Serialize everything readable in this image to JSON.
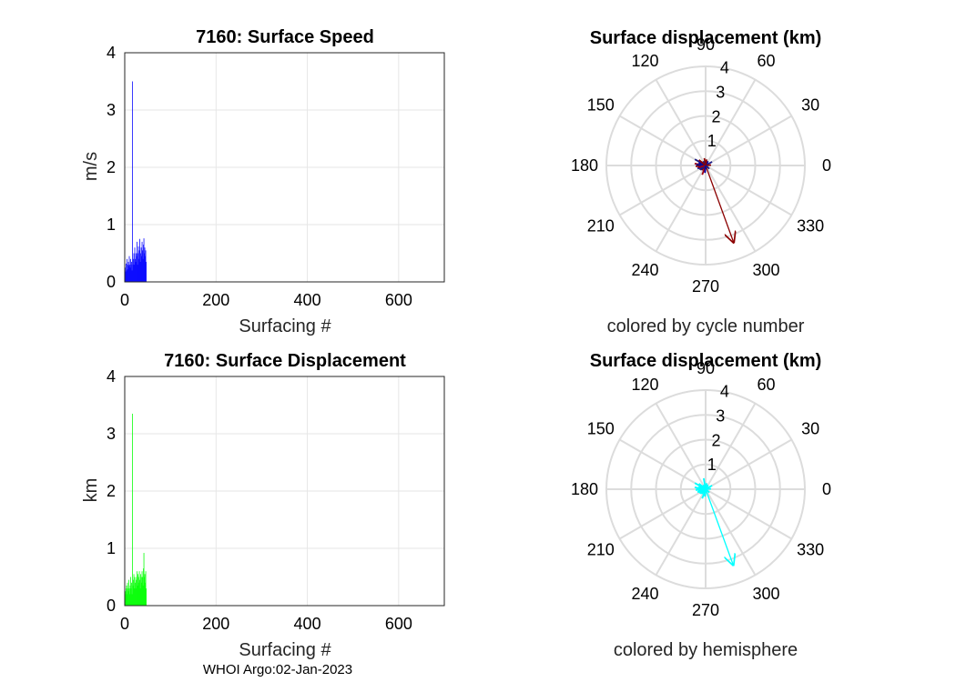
{
  "footer": "WHOI Argo:02-Jan-2023",
  "chart_data": [
    {
      "type": "bar",
      "title": "7160: Surface Speed",
      "xlabel": "Surfacing #",
      "ylabel": "m/s",
      "xlim": [
        0,
        700
      ],
      "ylim": [
        0,
        4
      ],
      "xticks": [
        "0",
        "200",
        "400",
        "600"
      ],
      "yticks": [
        "0",
        "1",
        "2",
        "3",
        "4"
      ],
      "color": "#0000ff",
      "n": 47,
      "values": [
        0.25,
        0.18,
        0.32,
        0.2,
        0.4,
        0.22,
        0.3,
        0.35,
        0.28,
        0.45,
        0.3,
        0.25,
        0.4,
        0.3,
        0.35,
        0.2,
        3.5,
        0.3,
        0.4,
        0.5,
        0.3,
        0.6,
        0.4,
        0.35,
        0.5,
        0.45,
        0.7,
        0.3,
        0.5,
        0.62,
        0.4,
        0.55,
        0.75,
        0.35,
        0.5,
        0.6,
        0.45,
        0.7,
        0.55,
        0.4,
        0.65,
        0.76,
        0.5,
        0.6,
        0.45,
        0.55,
        0.35
      ]
    },
    {
      "type": "polar",
      "title": "Surface displacement (km)",
      "xlabel": "colored by cycle number",
      "rlim": [
        0,
        4
      ],
      "rticks": [
        "1",
        "2",
        "3",
        "4"
      ],
      "angle_labels": [
        "0",
        "30",
        "60",
        "90",
        "120",
        "150",
        "180",
        "210",
        "240",
        "270",
        "300",
        "330"
      ],
      "vectors": [
        {
          "angle": 290,
          "r": 3.3,
          "color": "#8b0000"
        },
        {
          "angle": 150,
          "r": 0.5,
          "color": "#1a1a80"
        },
        {
          "angle": 185,
          "r": 0.4,
          "color": "#8b0000"
        },
        {
          "angle": 200,
          "r": 0.35,
          "color": "#0a0a8a"
        },
        {
          "angle": 170,
          "r": 0.45,
          "color": "#a00010"
        },
        {
          "angle": 210,
          "r": 0.3,
          "color": "#20208a"
        },
        {
          "angle": 160,
          "r": 0.3,
          "color": "#0000aa"
        },
        {
          "angle": 230,
          "r": 0.25,
          "color": "#8b0000"
        },
        {
          "angle": 100,
          "r": 0.3,
          "color": "#8b0000"
        },
        {
          "angle": 120,
          "r": 0.2,
          "color": "#1a1a80"
        },
        {
          "angle": 250,
          "r": 0.4,
          "color": "#a00010"
        },
        {
          "angle": 190,
          "r": 0.25,
          "color": "#0000aa"
        },
        {
          "angle": 140,
          "r": 0.35,
          "color": "#8b0000"
        },
        {
          "angle": 30,
          "r": 0.3,
          "color": "#20208a"
        },
        {
          "angle": 60,
          "r": 0.2,
          "color": "#0000aa"
        },
        {
          "angle": 5,
          "r": 0.22,
          "color": "#8b0000"
        },
        {
          "angle": 220,
          "r": 0.28,
          "color": "#1a1a80"
        },
        {
          "angle": 175,
          "r": 0.38,
          "color": "#0a0a8a"
        },
        {
          "angle": 195,
          "r": 0.3,
          "color": "#a00010"
        },
        {
          "angle": 265,
          "r": 0.3,
          "color": "#0000aa"
        },
        {
          "angle": 80,
          "r": 0.25,
          "color": "#8b0000"
        },
        {
          "angle": 320,
          "r": 0.2,
          "color": "#1a1a80"
        }
      ]
    },
    {
      "type": "bar",
      "title": "7160: Surface Displacement",
      "xlabel": "Surfacing #",
      "ylabel": "km",
      "xlim": [
        0,
        700
      ],
      "ylim": [
        0,
        4
      ],
      "xticks": [
        "0",
        "200",
        "400",
        "600"
      ],
      "yticks": [
        "0",
        "1",
        "2",
        "3",
        "4"
      ],
      "color": "#00ff00",
      "n": 47,
      "values": [
        0.2,
        0.25,
        0.3,
        0.35,
        0.2,
        0.4,
        0.3,
        0.25,
        0.45,
        0.3,
        0.2,
        0.35,
        0.5,
        0.3,
        0.4,
        0.2,
        3.35,
        0.35,
        0.45,
        0.55,
        0.3,
        0.5,
        0.4,
        0.3,
        0.45,
        0.5,
        0.6,
        0.35,
        0.55,
        0.4,
        0.5,
        0.6,
        0.45,
        0.3,
        0.55,
        0.5,
        0.4,
        0.6,
        0.5,
        0.35,
        0.65,
        0.92,
        0.5,
        0.55,
        0.4,
        0.6,
        0.3
      ]
    },
    {
      "type": "polar",
      "title": "Surface displacement (km)",
      "xlabel": "colored by hemisphere",
      "rlim": [
        0,
        4
      ],
      "rticks": [
        "1",
        "2",
        "3",
        "4"
      ],
      "angle_labels": [
        "0",
        "30",
        "60",
        "90",
        "120",
        "150",
        "180",
        "210",
        "240",
        "270",
        "300",
        "330"
      ],
      "vectors": [
        {
          "angle": 290,
          "r": 3.25,
          "color": "#00ffff"
        },
        {
          "angle": 150,
          "r": 0.5,
          "color": "#00ffff"
        },
        {
          "angle": 185,
          "r": 0.4,
          "color": "#00ffff"
        },
        {
          "angle": 200,
          "r": 0.35,
          "color": "#00ffff"
        },
        {
          "angle": 170,
          "r": 0.45,
          "color": "#00ffff"
        },
        {
          "angle": 210,
          "r": 0.3,
          "color": "#00ffff"
        },
        {
          "angle": 160,
          "r": 0.3,
          "color": "#00ffff"
        },
        {
          "angle": 230,
          "r": 0.25,
          "color": "#00ffff"
        },
        {
          "angle": 100,
          "r": 0.45,
          "color": "#00ffff"
        },
        {
          "angle": 120,
          "r": 0.2,
          "color": "#00ffff"
        },
        {
          "angle": 250,
          "r": 0.4,
          "color": "#00ffff"
        },
        {
          "angle": 190,
          "r": 0.25,
          "color": "#00ffff"
        },
        {
          "angle": 140,
          "r": 0.35,
          "color": "#00ffff"
        },
        {
          "angle": 30,
          "r": 0.3,
          "color": "#00ffff"
        },
        {
          "angle": 60,
          "r": 0.2,
          "color": "#00ffff"
        },
        {
          "angle": 5,
          "r": 0.22,
          "color": "#00ffff"
        },
        {
          "angle": 220,
          "r": 0.28,
          "color": "#00ffff"
        },
        {
          "angle": 175,
          "r": 0.38,
          "color": "#00ffff"
        },
        {
          "angle": 195,
          "r": 0.3,
          "color": "#00ffff"
        },
        {
          "angle": 265,
          "r": 0.3,
          "color": "#00ffff"
        },
        {
          "angle": 80,
          "r": 0.25,
          "color": "#00ffff"
        },
        {
          "angle": 320,
          "r": 0.2,
          "color": "#00ffff"
        }
      ]
    }
  ]
}
